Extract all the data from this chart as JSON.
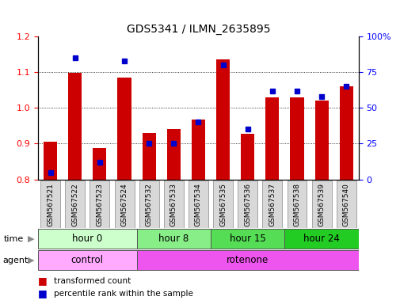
{
  "title": "GDS5341 / ILMN_2635895",
  "samples": [
    "GSM567521",
    "GSM567522",
    "GSM567523",
    "GSM567524",
    "GSM567532",
    "GSM567533",
    "GSM567534",
    "GSM567535",
    "GSM567536",
    "GSM567537",
    "GSM567538",
    "GSM567539",
    "GSM567540"
  ],
  "red_values": [
    0.905,
    1.098,
    0.888,
    1.085,
    0.93,
    0.94,
    0.968,
    1.135,
    0.928,
    1.03,
    1.03,
    1.02,
    1.06
  ],
  "blue_percentile": [
    5,
    85,
    12,
    83,
    25,
    25,
    40,
    80,
    35,
    62,
    62,
    58,
    65
  ],
  "ylim_left": [
    0.8,
    1.2
  ],
  "ylim_right": [
    0,
    100
  ],
  "yticks_left": [
    0.8,
    0.9,
    1.0,
    1.1,
    1.2
  ],
  "yticks_right": [
    0,
    25,
    50,
    75,
    100
  ],
  "time_groups": [
    {
      "label": "hour 0",
      "start": 0,
      "end": 4,
      "color": "#ccffcc"
    },
    {
      "label": "hour 8",
      "start": 4,
      "end": 7,
      "color": "#88ee88"
    },
    {
      "label": "hour 15",
      "start": 7,
      "end": 10,
      "color": "#55dd55"
    },
    {
      "label": "hour 24",
      "start": 10,
      "end": 13,
      "color": "#22cc22"
    }
  ],
  "agent_groups": [
    {
      "label": "control",
      "start": 0,
      "end": 4,
      "color": "#ffaaff"
    },
    {
      "label": "rotenone",
      "start": 4,
      "end": 13,
      "color": "#ee55ee"
    }
  ],
  "red_color": "#cc0000",
  "blue_color": "#0000cc",
  "bar_width": 0.55,
  "legend_red": "transformed count",
  "legend_blue": "percentile rank within the sample"
}
